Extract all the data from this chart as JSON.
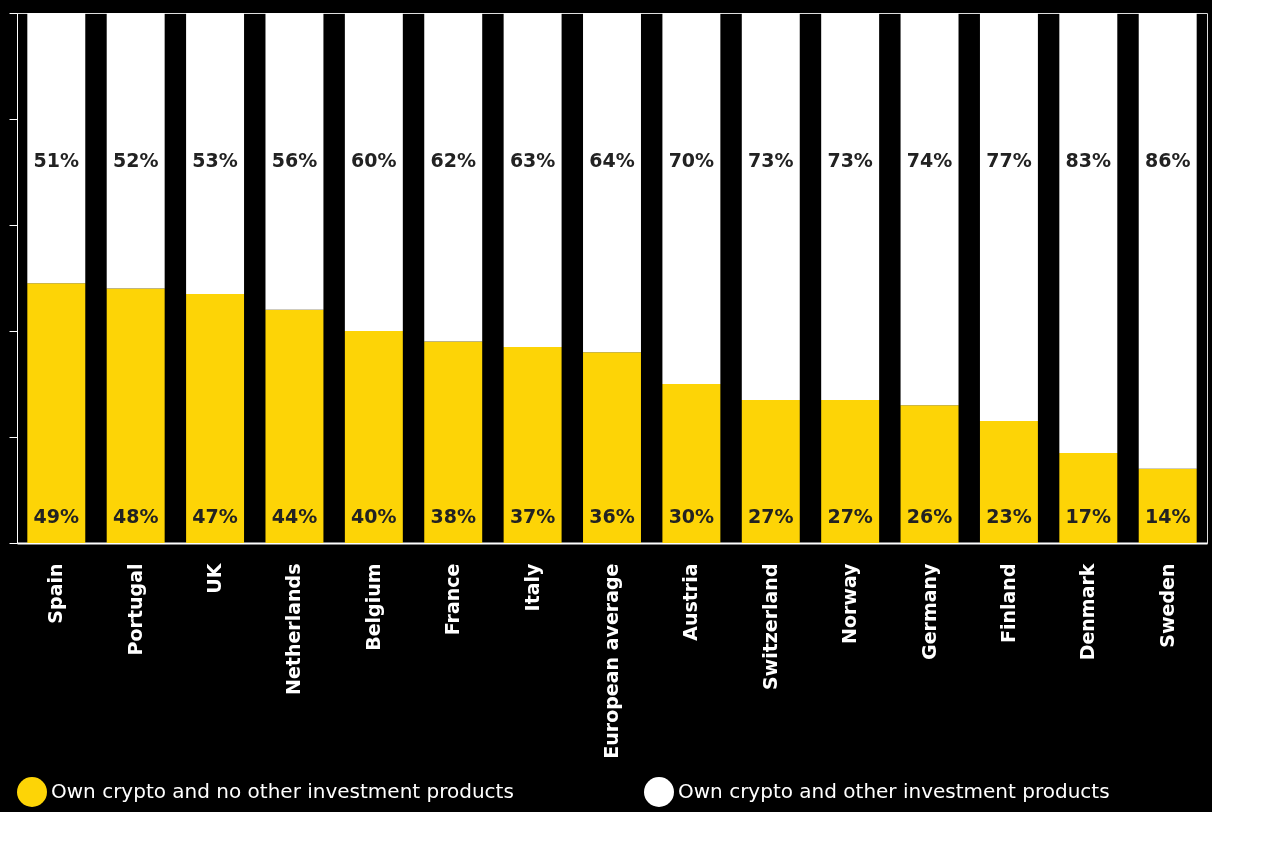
{
  "chart_data": {
    "type": "bar",
    "stacked": true,
    "categories": [
      "Spain",
      "Portugal",
      "UK",
      "Netherlands",
      "Belgium",
      "France",
      "Italy",
      "European average",
      "Austria",
      "Switzerland",
      "Norway",
      "Germany",
      "Finland",
      "Denmark",
      "Sweden"
    ],
    "series": [
      {
        "name": "Own crypto and no other investment products",
        "color": "#fdd406",
        "values": [
          49,
          48,
          47,
          44,
          40,
          38,
          37,
          36,
          30,
          27,
          27,
          26,
          23,
          17,
          14
        ],
        "value_labels": [
          "49%",
          "48%",
          "47%",
          "44%",
          "40%",
          "38%",
          "37%",
          "36%",
          "30%",
          "27%",
          "27%",
          "26%",
          "23%",
          "17%",
          "14%"
        ]
      },
      {
        "name": "Own crypto and other investment products",
        "color": "#ffffff",
        "values": [
          51,
          52,
          53,
          56,
          60,
          62,
          63,
          64,
          70,
          73,
          73,
          74,
          77,
          83,
          86
        ],
        "value_labels": [
          "51%",
          "52%",
          "53%",
          "56%",
          "60%",
          "62%",
          "63%",
          "64%",
          "70%",
          "73%",
          "73%",
          "74%",
          "77%",
          "83%",
          "86%"
        ]
      }
    ],
    "ylim": [
      0,
      100
    ],
    "yticks": [
      {
        "value": 0,
        "label": null
      },
      {
        "value": 20,
        "label": null
      },
      {
        "value": 40,
        "label": null
      },
      {
        "value": 60,
        "label": null
      },
      {
        "value": 80,
        "label": null
      },
      {
        "value": 100,
        "label": null
      }
    ],
    "tick_labels": "x",
    "grid": false,
    "legend": "bottom"
  }
}
